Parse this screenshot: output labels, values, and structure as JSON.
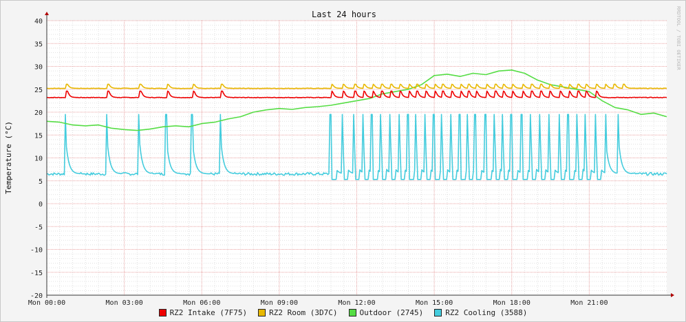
{
  "chart_data": {
    "type": "line",
    "title": "Last 24 hours",
    "ylabel": "Temperature (°C)",
    "watermark": "RRDTOOL / TOBI OETIKER",
    "ylim": [
      -20,
      40
    ],
    "yticks": [
      40,
      35,
      30,
      25,
      20,
      15,
      10,
      5,
      0,
      -5,
      -10,
      -15,
      -20
    ],
    "xlim": [
      0,
      24
    ],
    "xticks": [
      {
        "hour": 0,
        "label": "Mon 00:00"
      },
      {
        "hour": 3,
        "label": "Mon 03:00"
      },
      {
        "hour": 6,
        "label": "Mon 06:00"
      },
      {
        "hour": 9,
        "label": "Mon 09:00"
      },
      {
        "hour": 12,
        "label": "Mon 12:00"
      },
      {
        "hour": 15,
        "label": "Mon 15:00"
      },
      {
        "hour": 18,
        "label": "Mon 18:00"
      },
      {
        "hour": 21,
        "label": "Mon 21:00"
      }
    ],
    "series": [
      {
        "name": "RZ2 Intake (7F75)",
        "color": "#ee0000",
        "baseline": 23.2,
        "peak": 24.6,
        "spikes": [
          0.75,
          2.35,
          3.6,
          4.65,
          5.65,
          6.75,
          11.0,
          11.45,
          11.9,
          12.25,
          12.6,
          12.95,
          13.3,
          13.65,
          14.0,
          14.3,
          14.65,
          15.0,
          15.3,
          15.65,
          16.0,
          16.3,
          16.6,
          17.0,
          17.35,
          17.65,
          18.0,
          18.4,
          18.75,
          19.1,
          19.45,
          19.85,
          20.2,
          20.55,
          20.85,
          21.25
        ]
      },
      {
        "name": "RZ2 Room (3D7C)",
        "color": "#e8b800",
        "baseline": 25.2,
        "peak": 26.1,
        "spikes": [
          0.75,
          2.35,
          3.6,
          4.65,
          5.65,
          6.75,
          11.0,
          11.45,
          11.9,
          12.25,
          12.6,
          12.95,
          13.3,
          13.65,
          14.0,
          14.3,
          14.65,
          15.0,
          15.3,
          15.65,
          16.0,
          16.3,
          16.6,
          17.0,
          17.35,
          17.65,
          18.0,
          18.4,
          18.75,
          19.1,
          19.45,
          19.85,
          20.2,
          20.55,
          20.85,
          21.25,
          21.6,
          21.95,
          22.3
        ]
      },
      {
        "name": "Outdoor (2745)",
        "color": "#55dd44",
        "x": [
          0,
          0.5,
          1,
          1.5,
          2,
          2.5,
          3,
          3.5,
          4,
          4.5,
          5,
          5.5,
          6,
          6.5,
          7,
          7.5,
          8,
          8.5,
          9,
          9.5,
          10,
          10.5,
          11,
          11.5,
          12,
          12.5,
          13,
          13.5,
          14,
          14.5,
          15,
          15.5,
          16,
          16.5,
          17,
          17.5,
          18,
          18.5,
          19,
          19.5,
          20,
          20.5,
          21,
          21.5,
          22,
          22.5,
          23,
          23.5,
          24
        ],
        "values": [
          18.0,
          17.8,
          17.2,
          17.0,
          17.2,
          16.5,
          16.2,
          16.0,
          16.3,
          16.8,
          17.0,
          16.8,
          17.5,
          17.8,
          18.5,
          19.0,
          20.0,
          20.5,
          20.8,
          20.6,
          21.0,
          21.2,
          21.5,
          22.0,
          22.5,
          23.0,
          24.0,
          24.5,
          25.0,
          26.0,
          28.0,
          28.3,
          27.8,
          28.5,
          28.2,
          29.0,
          29.2,
          28.5,
          27.0,
          26.0,
          25.5,
          25.0,
          24.5,
          22.5,
          21.0,
          20.5,
          19.5,
          19.8,
          19.0
        ]
      },
      {
        "name": "RZ2 Cooling (3588)",
        "color": "#44ccdd",
        "baseline": 6.5,
        "peak": 19.5,
        "spikes": [
          0.7,
          2.3,
          3.55,
          4.6,
          5.6,
          6.7,
          10.95,
          11.4,
          11.85,
          12.2,
          12.55,
          12.9,
          13.25,
          13.6,
          13.95,
          14.25,
          14.6,
          14.95,
          15.25,
          15.6,
          15.95,
          16.25,
          16.55,
          16.95,
          17.3,
          17.6,
          17.95,
          18.35,
          18.7,
          19.05,
          19.4,
          19.8,
          20.15,
          20.5,
          20.8,
          21.2,
          21.6,
          22.1
        ]
      }
    ],
    "grid": true,
    "legend_position": "bottom"
  }
}
